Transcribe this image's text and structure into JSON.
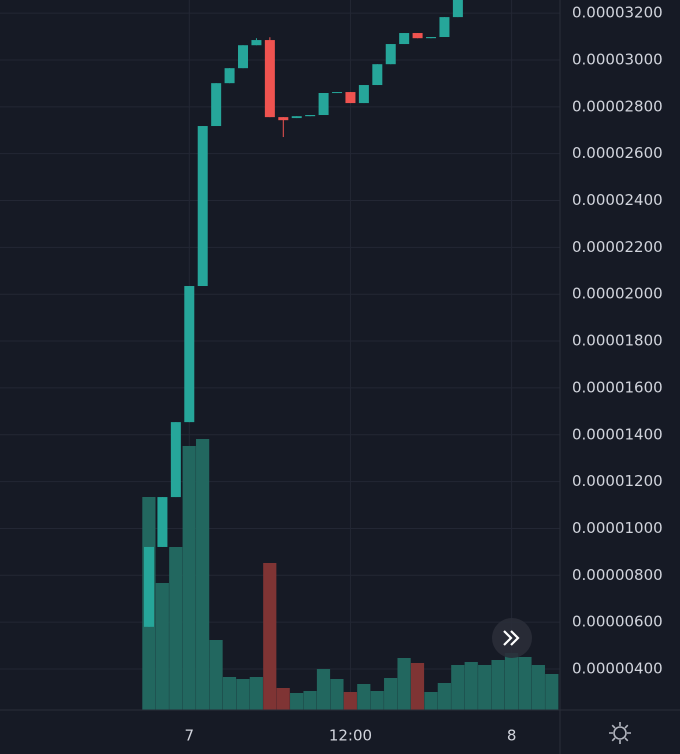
{
  "chart_data": {
    "type": "candlestick",
    "categories": [
      null,
      null,
      null,
      "7",
      null,
      null,
      null,
      null,
      null,
      null,
      null,
      null,
      null,
      null,
      null,
      "12:00",
      null,
      null,
      null,
      null,
      null,
      null,
      null,
      null,
      null,
      null,
      null,
      "8",
      null,
      null,
      null
    ],
    "open": [
      5.8e-06,
      9.21e-06,
      1.134e-05,
      1.454e-05,
      2.035e-05,
      2.718e-05,
      2.901e-05,
      2.965e-05,
      3.063e-05,
      3.085e-05,
      2.756e-05,
      2.752e-05,
      2.76e-05,
      2.765e-05,
      2.859e-05,
      2.863e-05,
      2.816e-05,
      2.893e-05,
      2.982e-05,
      3.068e-05,
      3.115e-05,
      3.093e-05,
      3.098e-05,
      3.183e-05,
      null,
      null,
      null,
      null,
      null,
      null,
      null
    ],
    "high": [
      9.21e-06,
      1.134e-05,
      1.454e-05,
      2.035e-05,
      2.718e-05,
      2.901e-05,
      2.965e-05,
      3.063e-05,
      3.093e-05,
      3.097e-05,
      2.756e-05,
      2.76e-05,
      2.765e-05,
      2.859e-05,
      2.863e-05,
      2.863e-05,
      2.893e-05,
      2.982e-05,
      3.068e-05,
      3.115e-05,
      3.115e-05,
      3.098e-05,
      3.183e-05,
      3.277e-05,
      null,
      null,
      null,
      null,
      null,
      null,
      null
    ],
    "low": [
      5.8e-06,
      9.21e-06,
      1.134e-05,
      1.454e-05,
      2.035e-05,
      2.718e-05,
      2.901e-05,
      2.965e-05,
      3.063e-05,
      2.756e-05,
      2.671e-05,
      2.752e-05,
      2.76e-05,
      2.765e-05,
      2.859e-05,
      2.816e-05,
      2.816e-05,
      2.893e-05,
      2.982e-05,
      3.068e-05,
      3.093e-05,
      3.093e-05,
      3.098e-05,
      3.183e-05,
      null,
      null,
      null,
      null,
      null,
      null,
      null
    ],
    "close": [
      9.21e-06,
      1.134e-05,
      1.454e-05,
      2.035e-05,
      2.718e-05,
      2.901e-05,
      2.965e-05,
      3.063e-05,
      3.085e-05,
      2.756e-05,
      2.743e-05,
      2.76e-05,
      2.765e-05,
      2.859e-05,
      2.863e-05,
      2.816e-05,
      2.893e-05,
      2.982e-05,
      3.068e-05,
      3.115e-05,
      3.093e-05,
      3.098e-05,
      3.183e-05,
      3.277e-05,
      null,
      null,
      null,
      null,
      null,
      null,
      null
    ],
    "up_color": "#26a69a",
    "down_color": "#ef5350",
    "volume": [
      213,
      127,
      163,
      264,
      271,
      70,
      33,
      31,
      33,
      147,
      22,
      17,
      19,
      41,
      31,
      18,
      26,
      19,
      32,
      52,
      47,
      18,
      27,
      45,
      48,
      45,
      50,
      57,
      53,
      45,
      36
    ],
    "volume_colors": [
      "#22675f",
      "#22675f",
      "#22675f",
      "#22675f",
      "#22675f",
      "#22675f",
      "#22675f",
      "#22675f",
      "#22675f",
      "#7f3434",
      "#7f3434",
      "#22675f",
      "#22675f",
      "#22675f",
      "#22675f",
      "#7f3434",
      "#22675f",
      "#22675f",
      "#22675f",
      "#22675f",
      "#7f3434",
      "#22675f",
      "#22675f",
      "#22675f",
      "#22675f",
      "#22675f",
      "#22675f",
      "#22675f",
      "#22675f",
      "#22675f",
      "#22675f"
    ],
    "vlim": [
      0,
      300
    ],
    "ylim": [
      2.25e-06,
      3.256e-05
    ],
    "yticks": [
      {
        "value": 4e-06,
        "label": "0.00000400"
      },
      {
        "value": 6e-06,
        "label": "0.00000600"
      },
      {
        "value": 8e-06,
        "label": "0.00000800"
      },
      {
        "value": 1e-05,
        "label": "0.00001000"
      },
      {
        "value": 1.2e-05,
        "label": "0.00001200"
      },
      {
        "value": 1.4e-05,
        "label": "0.00001400"
      },
      {
        "value": 1.6e-05,
        "label": "0.00001600"
      },
      {
        "value": 1.8e-05,
        "label": "0.00001800"
      },
      {
        "value": 2e-05,
        "label": "0.00002000"
      },
      {
        "value": 2.2e-05,
        "label": "0.00002200"
      },
      {
        "value": 2.4e-05,
        "label": "0.00002400"
      },
      {
        "value": 2.6e-05,
        "label": "0.00002600"
      },
      {
        "value": 2.8e-05,
        "label": "0.00002800"
      },
      {
        "value": 3e-05,
        "label": "0.00003000"
      },
      {
        "value": 3.2e-05,
        "label": "0.00003200"
      }
    ],
    "grid": true
  }
}
